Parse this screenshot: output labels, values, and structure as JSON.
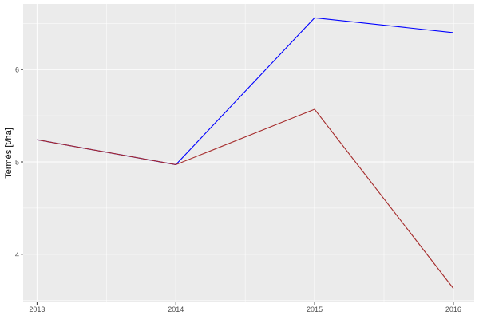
{
  "chart_data": {
    "type": "line",
    "title": "",
    "xlabel": "",
    "ylabel": "Termés [t/ha]",
    "x": [
      2013,
      2014,
      2015,
      2016
    ],
    "x_tick_labels": [
      "2013",
      "2014",
      "2015",
      "2016"
    ],
    "y_ticks": [
      4,
      5,
      6
    ],
    "y_tick_labels": [
      "4",
      "5",
      "6"
    ],
    "xlim": [
      2012.9,
      2016.15
    ],
    "ylim": [
      3.48,
      6.71
    ],
    "grid": true,
    "legend": "none",
    "series": [
      {
        "color": "#0000ff",
        "values": [
          5.24,
          4.97,
          6.56,
          6.4
        ]
      },
      {
        "color": "#a52a2a",
        "values": [
          5.24,
          4.97,
          5.57,
          3.63
        ]
      }
    ]
  }
}
